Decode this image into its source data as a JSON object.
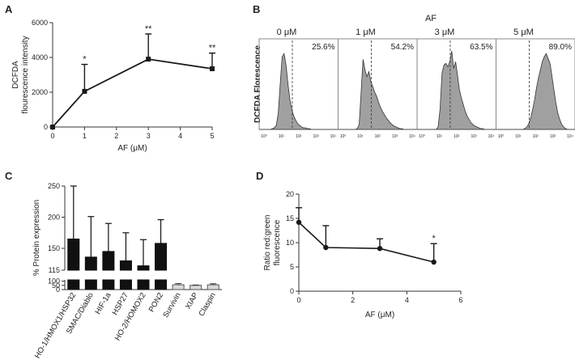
{
  "panel_labels": {
    "a": "A",
    "b": "B",
    "c": "C",
    "d": "D"
  },
  "colors": {
    "line": "#1a1a1a",
    "histogram_fill": "#a0a0a0",
    "bar_dark": "#111111",
    "bar_light": "#d9d9d9"
  },
  "chart_data": [
    {
      "id": "A",
      "type": "line",
      "title": "",
      "xlabel": "AF (μM)",
      "ylabel_lines": [
        "DCFDA",
        "flourescence intensity"
      ],
      "x": [
        0,
        1,
        3,
        5
      ],
      "y": [
        0,
        2050,
        3900,
        3350
      ],
      "err": [
        0,
        1550,
        1450,
        900
      ],
      "significance": [
        "",
        "*",
        "**",
        "**"
      ],
      "xlim": [
        0,
        5
      ],
      "ylim": [
        0,
        6000
      ],
      "xticks": [
        "0",
        "1",
        "2",
        "3",
        "4",
        "5"
      ],
      "yticks": [
        "0",
        "2000",
        "4000",
        "6000"
      ]
    },
    {
      "id": "B",
      "type": "histogram",
      "title": "AF",
      "ylabel": "DCFDA Florescence",
      "panels": [
        {
          "dose": "0 μM",
          "percent": "25.6%",
          "counts": [
            0,
            0,
            0,
            0,
            0,
            0,
            1,
            2,
            5,
            20,
            55,
            88,
            92,
            78,
            55,
            36,
            24,
            16,
            11,
            7,
            5,
            3,
            2,
            2,
            1,
            1,
            0,
            0,
            0,
            0,
            0,
            0,
            0,
            0,
            0,
            0,
            0,
            0,
            0,
            0
          ]
        },
        {
          "dose": "1 μM",
          "percent": "54.2%",
          "counts": [
            0,
            0,
            0,
            0,
            0,
            0,
            0,
            0,
            0,
            1,
            6,
            45,
            85,
            72,
            64,
            70,
            58,
            52,
            45,
            40,
            33,
            27,
            22,
            18,
            14,
            11,
            8,
            6,
            4,
            3,
            2,
            1,
            1,
            0,
            0,
            0,
            0,
            0,
            0,
            0
          ]
        },
        {
          "dose": "3 μM",
          "percent": "63.5%",
          "counts": [
            0,
            0,
            0,
            0,
            0,
            0,
            0,
            0,
            0,
            0,
            3,
            25,
            68,
            78,
            80,
            76,
            82,
            95,
            74,
            82,
            66,
            48,
            38,
            30,
            22,
            16,
            12,
            8,
            6,
            4,
            3,
            2,
            1,
            1,
            0,
            0,
            0,
            0,
            0,
            0
          ]
        },
        {
          "dose": "5 μM",
          "percent": "89.0%",
          "counts": [
            0,
            0,
            0,
            0,
            0,
            0,
            0,
            0,
            0,
            0,
            0,
            0,
            0,
            0,
            1,
            3,
            7,
            14,
            24,
            36,
            50,
            62,
            72,
            82,
            88,
            92,
            86,
            80,
            64,
            48,
            32,
            20,
            12,
            6,
            3,
            1,
            0,
            0,
            0,
            0
          ]
        }
      ],
      "gate_position": 0.42,
      "axis_tick_labels": [
        "10⁰",
        "10¹",
        "10²",
        "10³",
        "10⁴"
      ]
    },
    {
      "id": "C",
      "type": "bar",
      "ylabel": "% Protein expression",
      "categories": [
        "HO-1/HMOX1/HSP32",
        "SMAC/Diablo",
        "HIF-1a",
        "HSP27",
        "HO-2/HOMOX2",
        "PON2",
        "Survivin",
        "XIAP",
        "Claspin"
      ],
      "values": [
        165,
        136,
        145,
        130,
        122,
        158,
        57,
        50,
        57
      ],
      "err": [
        85,
        65,
        45,
        45,
        42,
        38,
        14,
        4,
        12
      ],
      "bar_style": [
        "dark",
        "dark",
        "dark",
        "dark",
        "dark",
        "dark",
        "light",
        "light",
        "light"
      ],
      "axis_break": {
        "lower_range": [
          0,
          115
        ],
        "upper_range": [
          115,
          250
        ]
      },
      "yticks": [
        "0",
        "50",
        "100",
        "115",
        "150",
        "200",
        "250"
      ]
    },
    {
      "id": "D",
      "type": "line",
      "xlabel": "AF (μM)",
      "ylabel_lines": [
        "Ratio red:green",
        "fluorescence"
      ],
      "x": [
        0,
        1,
        3,
        5
      ],
      "y": [
        14.2,
        9.0,
        8.8,
        6.0
      ],
      "err": [
        3.0,
        4.5,
        2.0,
        3.8
      ],
      "significance": [
        "",
        "",
        "",
        "*"
      ],
      "xlim": [
        0,
        6
      ],
      "ylim": [
        0,
        20
      ],
      "xticks": [
        "0",
        "2",
        "4",
        "6"
      ],
      "yticks": [
        "0",
        "5",
        "10",
        "15",
        "20"
      ]
    }
  ]
}
